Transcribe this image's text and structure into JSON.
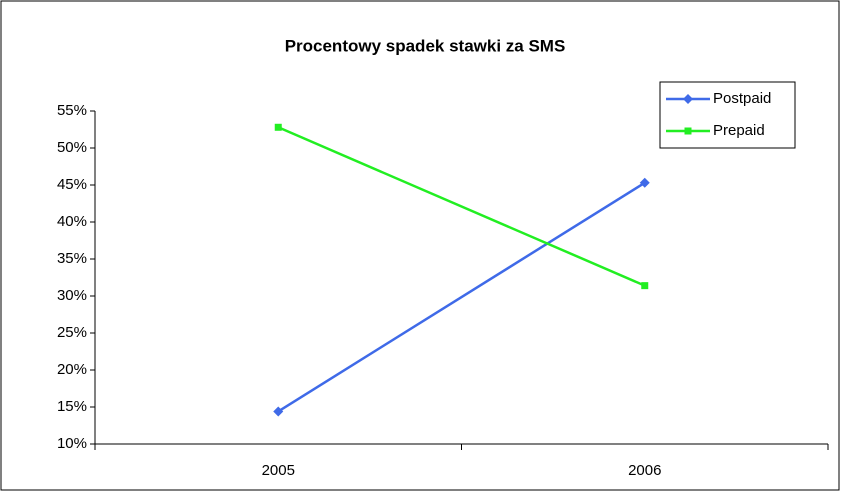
{
  "chart_data": {
    "type": "line",
    "title": "Procentowy spadek stawki za SMS",
    "categories": [
      "2005",
      "2006"
    ],
    "series": [
      {
        "name": "Postpaid",
        "color": "#3f6ae8",
        "marker": "diamond",
        "values": [
          14.4,
          45.3
        ]
      },
      {
        "name": "Prepaid",
        "color": "#22ee22",
        "marker": "square",
        "values": [
          52.8,
          31.4
        ]
      }
    ],
    "ylim": [
      10,
      55
    ],
    "yticks": [
      {
        "value": 10,
        "label": "10%"
      },
      {
        "value": 15,
        "label": "15%"
      },
      {
        "value": 20,
        "label": "20%"
      },
      {
        "value": 25,
        "label": "25%"
      },
      {
        "value": 30,
        "label": "30%"
      },
      {
        "value": 35,
        "label": "35%"
      },
      {
        "value": 40,
        "label": "40%"
      },
      {
        "value": 45,
        "label": "45%"
      },
      {
        "value": 50,
        "label": "50%"
      },
      {
        "value": 55,
        "label": "55%"
      }
    ],
    "grid": false,
    "legend": "top-right"
  }
}
